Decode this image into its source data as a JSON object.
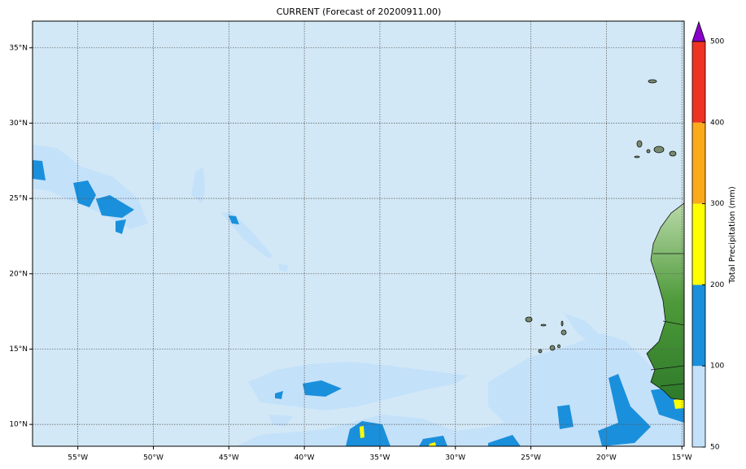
{
  "map": {
    "title": "CURRENT (Forecast of 20200911.00)",
    "xlim": [
      -58.0,
      -14.85
    ],
    "ylim": [
      8.55,
      36.77
    ],
    "xticks": [
      {
        "value": -55,
        "label": "55°W"
      },
      {
        "value": -50,
        "label": "50°W"
      },
      {
        "value": -45,
        "label": "45°W"
      },
      {
        "value": -40,
        "label": "40°W"
      },
      {
        "value": -35,
        "label": "35°W"
      },
      {
        "value": -30,
        "label": "30°W"
      },
      {
        "value": -25,
        "label": "25°W"
      },
      {
        "value": -20,
        "label": "20°W"
      },
      {
        "value": -15,
        "label": "15°W"
      }
    ],
    "yticks": [
      {
        "value": 10,
        "label": "10°N"
      },
      {
        "value": 15,
        "label": "15°N"
      },
      {
        "value": 20,
        "label": "20°N"
      },
      {
        "value": 25,
        "label": "25°N"
      },
      {
        "value": 30,
        "label": "30°N"
      },
      {
        "value": 35,
        "label": "35°N"
      }
    ],
    "colorbar": {
      "label": "Total Precipitation (mm)",
      "levels": [
        50,
        100,
        200,
        300,
        400,
        500
      ],
      "colors": [
        "#c4e1fa",
        "#1a90dc",
        "#ffff00",
        "#fbaa1c",
        "#ee3322"
      ],
      "extend_color": "#8a00cc"
    }
  }
}
